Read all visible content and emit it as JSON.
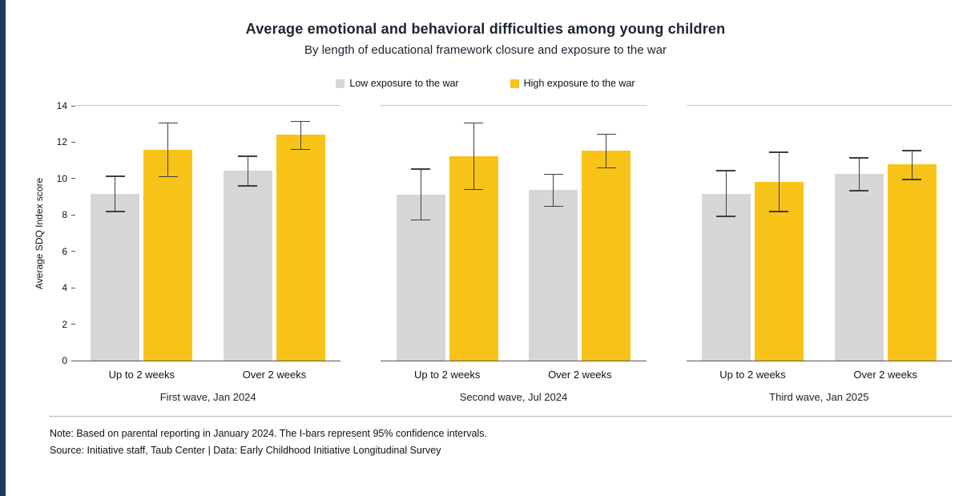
{
  "page": {
    "title": "Average emotional and behavioral difficulties among young children",
    "subtitle": "By length of educational framework closure and exposure to the war",
    "note": "Note: Based on parental reporting in January 2024. The I-bars represent 95% confidence intervals.",
    "source": "Source: Initiative staff, Taub Center | Data: Early Childhood Initiative Longitudinal Survey"
  },
  "colors": {
    "accent_stripe": "#1e3a5f",
    "low_exposure_bar": "#d6d6d6",
    "high_exposure_bar": "#f7c319",
    "error_bar": "#3f3f3f",
    "title_text": "#1b2430"
  },
  "legend": [
    {
      "label": "Low exposure to the war",
      "color": "#d6d6d6"
    },
    {
      "label": "High exposure to the war",
      "color": "#f7c319"
    }
  ],
  "chart_data": {
    "type": "bar",
    "title": "Average emotional and behavioral difficulties among young children",
    "subtitle": "By length of educational framework closure and exposure to the war",
    "ylabel": "Average SDQ Index score",
    "xlabel": "",
    "ylim": [
      0,
      14
    ],
    "yticks": [
      0,
      2,
      4,
      6,
      8,
      10,
      12,
      14
    ],
    "grid": false,
    "legend_position": "top",
    "error_bars": "95% confidence intervals",
    "series_names": [
      "Low exposure to the war",
      "High exposure to the war"
    ],
    "panels": [
      {
        "label": "First wave, Jan 2024",
        "groups": [
          {
            "category": "Up to 2 weeks",
            "bars": [
              {
                "series": "Low exposure to the war",
                "value": 9.1,
                "ci": [
                  8.1,
                  10.1
                ]
              },
              {
                "series": "High exposure to the war",
                "value": 11.5,
                "ci": [
                  10.0,
                  13.0
                ]
              }
            ]
          },
          {
            "category": "Over 2 weeks",
            "bars": [
              {
                "series": "Low exposure to the war",
                "value": 10.35,
                "ci": [
                  9.5,
                  11.2
                ]
              },
              {
                "series": "High exposure to the war",
                "value": 12.35,
                "ci": [
                  11.5,
                  13.1
                ]
              }
            ]
          }
        ]
      },
      {
        "label": "Second wave, Jul 2024",
        "groups": [
          {
            "category": "Up to 2 weeks",
            "bars": [
              {
                "series": "Low exposure to the war",
                "value": 9.05,
                "ci": [
                  7.65,
                  10.5
                ]
              },
              {
                "series": "High exposure to the war",
                "value": 11.15,
                "ci": [
                  9.3,
                  13.0
                ]
              }
            ]
          },
          {
            "category": "Over 2 weeks",
            "bars": [
              {
                "series": "Low exposure to the war",
                "value": 9.3,
                "ci": [
                  8.4,
                  10.2
                ]
              },
              {
                "series": "High exposure to the war",
                "value": 11.45,
                "ci": [
                  10.5,
                  12.4
                ]
              }
            ]
          }
        ]
      },
      {
        "label": "Third wave, Jan 2025",
        "groups": [
          {
            "category": "Up to 2 weeks",
            "bars": [
              {
                "series": "Low exposure to the war",
                "value": 9.1,
                "ci": [
                  7.85,
                  10.4
                ]
              },
              {
                "series": "High exposure to the war",
                "value": 9.75,
                "ci": [
                  8.1,
                  11.4
                ]
              }
            ]
          },
          {
            "category": "Over 2 weeks",
            "bars": [
              {
                "series": "Low exposure to the war",
                "value": 10.2,
                "ci": [
                  9.25,
                  11.1
                ]
              },
              {
                "series": "High exposure to the war",
                "value": 10.7,
                "ci": [
                  9.85,
                  11.5
                ]
              }
            ]
          }
        ]
      }
    ]
  }
}
